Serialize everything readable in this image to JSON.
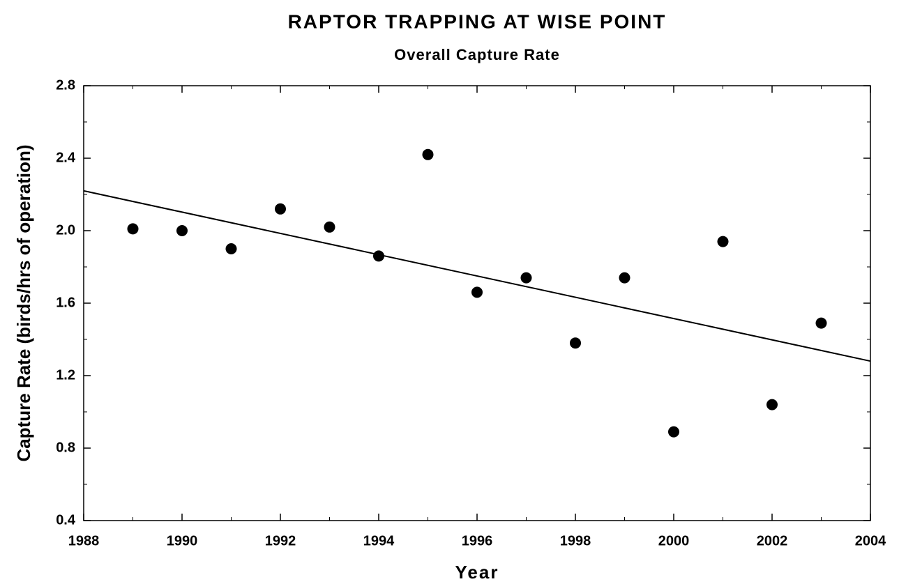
{
  "chart_data": {
    "type": "scatter",
    "title": "RAPTOR TRAPPING AT WISE POINT",
    "subtitle": "Overall Capture Rate",
    "x_label": "Year",
    "y_label": "Capture Rate (birds/hrs of operation)",
    "x": [
      1989,
      1990,
      1991,
      1992,
      1993,
      1994,
      1995,
      1996,
      1997,
      1998,
      1999,
      2000,
      2001,
      2002,
      2003
    ],
    "values": [
      2.01,
      2.0,
      1.9,
      2.12,
      2.02,
      1.86,
      2.42,
      1.66,
      1.74,
      1.38,
      1.74,
      0.89,
      1.94,
      1.04,
      1.49
    ],
    "color": "#000000",
    "trendline": {
      "x": [
        1988,
        2004
      ],
      "values": [
        2.22,
        1.28
      ],
      "color": "#000000"
    },
    "xlim": [
      1988,
      2004
    ],
    "xticks": [
      1988,
      1990,
      1992,
      1994,
      1996,
      1998,
      2000,
      2002,
      2004
    ],
    "ylim": [
      0.4,
      2.8
    ],
    "yticks": [
      0.4,
      0.8,
      1.2,
      1.6,
      {
        "value": 2.0,
        "label": "2.0"
      },
      2.4,
      2.8
    ],
    "grid": false
  }
}
